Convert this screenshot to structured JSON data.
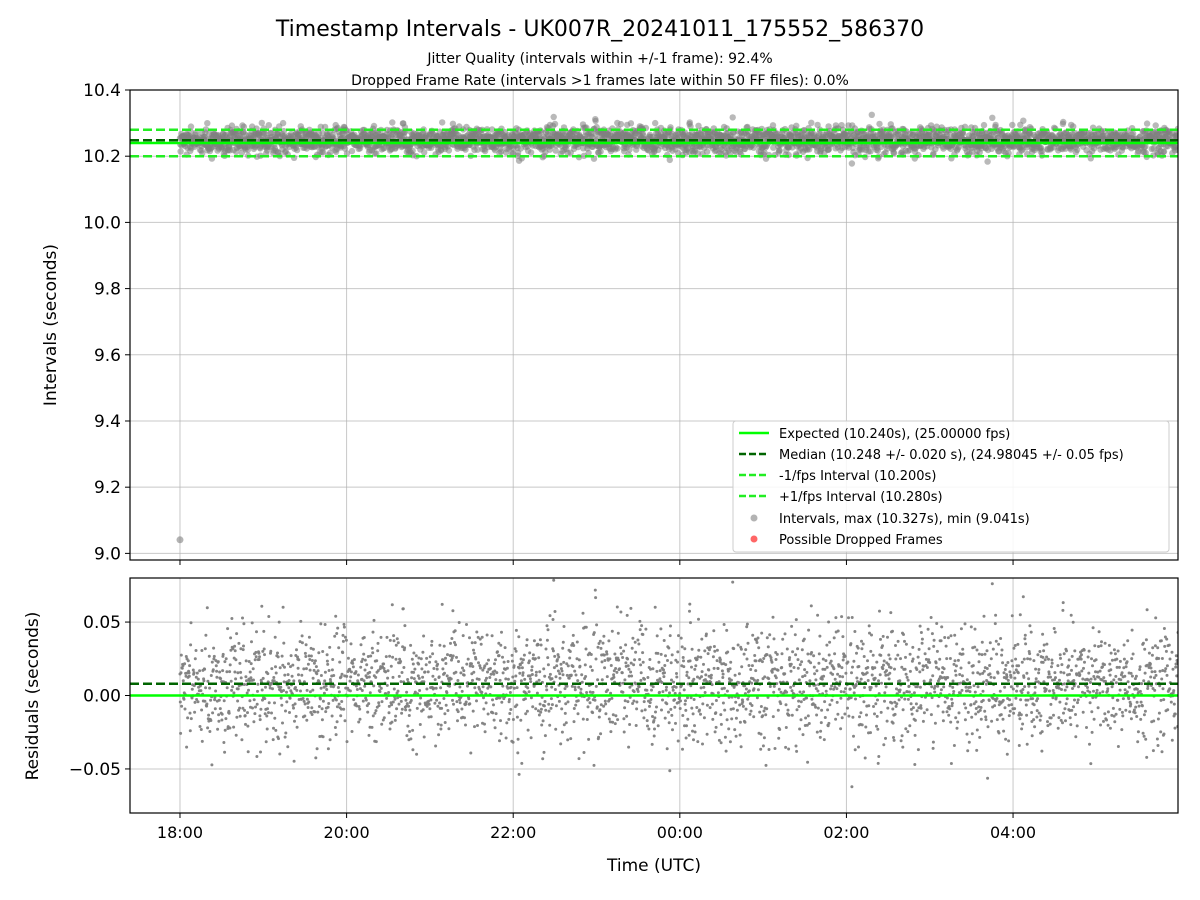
{
  "figure": {
    "title": "Timestamp Intervals - UK007R_20241011_175552_586370",
    "subtitle_1": "Jitter Quality (intervals within +/-1 frame): 92.4%",
    "subtitle_2": "Dropped Frame Rate (intervals >1 frames late within 50 FF files): 0.0%"
  },
  "colors": {
    "expected": "#00ff00",
    "median": "#006400",
    "bounds": "#22ee22",
    "points": "#808080",
    "dropped": "#ff0000",
    "grid": "#b0b0b0"
  },
  "chart_data": [
    {
      "type": "scatter",
      "xlabel": "",
      "ylabel": "Intervals (seconds)",
      "x_unit": "hours since 17:55:52 UTC (start of capture)",
      "xlim": [
        -0.6,
        11.98
      ],
      "ylim": [
        8.98,
        10.4
      ],
      "yticks": [
        9.0,
        9.2,
        9.4,
        9.6,
        9.8,
        10.0,
        10.2,
        10.4
      ],
      "ytick_labels": [
        "9.0",
        "9.2",
        "9.4",
        "9.6",
        "9.8",
        "10.0",
        "10.2",
        "10.4"
      ],
      "grid": true,
      "legend_position": "lower-right",
      "lines": [
        {
          "name": "Expected (10.240s), (25.00000 fps)",
          "y": 10.24,
          "style": "solid"
        },
        {
          "name": "Median (10.248 +/- 0.020 s), (24.98045 +/- 0.05 fps)",
          "y": 10.248,
          "style": "dashed"
        },
        {
          "name": "-1/fps Interval (10.200s)",
          "y": 10.2,
          "style": "dashed"
        },
        {
          "name": "+1/fps Interval (10.280s)",
          "y": 10.28,
          "style": "dashed"
        }
      ],
      "series": [
        {
          "name": "Intervals, max (10.327s), min (9.041s)",
          "center": 10.248,
          "spread": 0.02,
          "max": 10.327,
          "min": 9.041,
          "outlier": {
            "x": 0.0,
            "y": 9.041
          }
        },
        {
          "name": "Possible Dropped Frames",
          "points": []
        }
      ]
    },
    {
      "type": "scatter",
      "xlabel": "Time (UTC)",
      "ylabel": "Residuals (seconds)",
      "xlim": [
        -0.6,
        11.98
      ],
      "ylim": [
        -0.08,
        0.08
      ],
      "yticks": [
        -0.05,
        0.0,
        0.05
      ],
      "ytick_labels": [
        "−0.05",
        "0.00",
        "0.05"
      ],
      "xticks": [
        0,
        2,
        4,
        6,
        8,
        10
      ],
      "xtick_labels": [
        "18:00",
        "20:00",
        "22:00",
        "00:00",
        "02:00",
        "04:00"
      ],
      "grid": true,
      "lines": [
        {
          "y": 0.0,
          "style": "solid"
        },
        {
          "y": 0.008,
          "style": "dashed"
        }
      ],
      "series": [
        {
          "center": 0.008,
          "spread": 0.02
        }
      ]
    }
  ]
}
